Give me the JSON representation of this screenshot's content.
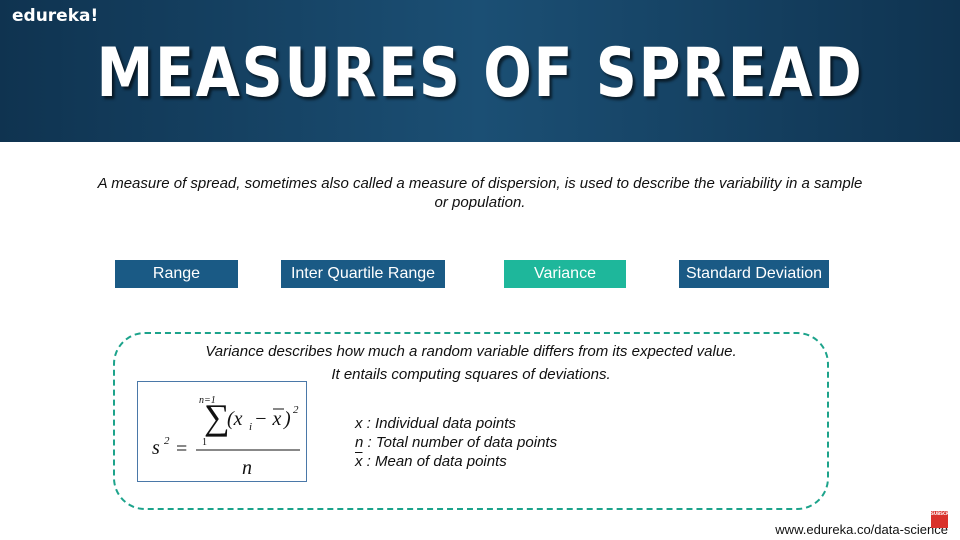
{
  "brand": "edureka!",
  "title": "MEASURES OF SPREAD",
  "intro": "A measure of spread, sometimes also called a measure of dispersion, is used to describe the variability in a sample or population.",
  "measures": [
    "Range",
    "Inter Quartile Range",
    "Variance",
    "Standard Deviation"
  ],
  "active_measure": "Variance",
  "colors": {
    "header": "#1b4f74",
    "button": "#1a5a85",
    "active_button": "#1eb79b",
    "dashed_border": "#1ca38b"
  },
  "variance": {
    "description_line1": "Variance describes how much a random variable differs from its expected value.",
    "description_line2": "It entails computing squares of deviations.",
    "formula": {
      "lhs_base": "s",
      "lhs_exp": "2",
      "equals": "=",
      "sum_upper": "n=1",
      "sum_lower": "1",
      "term": "(x",
      "term_sub": "i",
      "term_mid": " − x",
      "term_close": ")",
      "term_exp": "2",
      "denominator": "n"
    },
    "legend": [
      {
        "symbol": "x",
        "text": " : Individual data points"
      },
      {
        "symbol": "n",
        "text": " : Total number of data points"
      },
      {
        "symbol": "x",
        "text": " : Mean of data points"
      }
    ]
  },
  "footer_url": "www.edureka.co/data-science",
  "subscribe_label": "SUBSCRIBE"
}
